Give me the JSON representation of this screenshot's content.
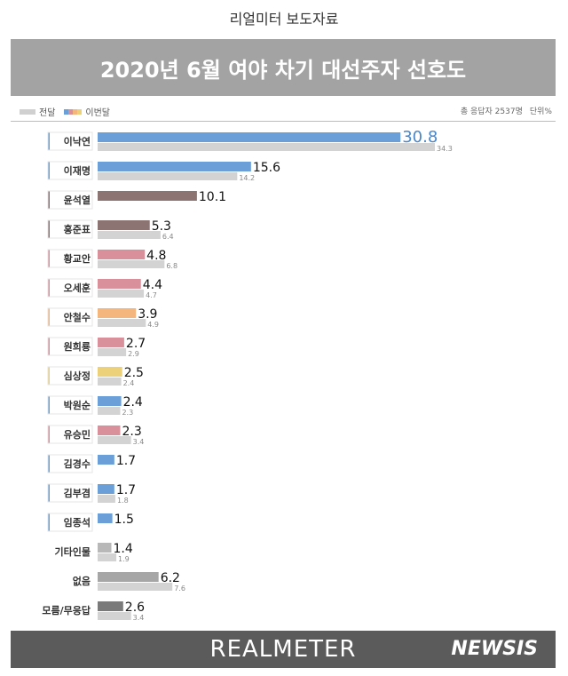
{
  "header": {
    "top_label": "리얼미터 보도자료",
    "title": "2020년 6월 여야 차기 대선주자 선호도"
  },
  "legend": {
    "prev_label": "전달",
    "curr_label": "이번달"
  },
  "info": {
    "respondents": "총 응답자 2537명",
    "unit": "단위%"
  },
  "footer": {
    "brand": "REALMETER",
    "watermark": "NEWSIS"
  },
  "colors": {
    "prev_bar": "#d3d3d3",
    "title_bg": "#a3a3a3",
    "footer_bg": "#5b5b5b"
  },
  "chart_data": {
    "type": "bar",
    "orientation": "horizontal",
    "categories": [
      "이낙연",
      "이재명",
      "윤석열",
      "홍준표",
      "황교안",
      "오세훈",
      "안철수",
      "원희룡",
      "심상정",
      "박원순",
      "유승민",
      "김경수",
      "김부겸",
      "임종석",
      "기타인물",
      "없음",
      "모름/무응답"
    ],
    "series": [
      {
        "name": "이번달",
        "values": [
          30.8,
          15.6,
          10.1,
          5.3,
          4.8,
          4.4,
          3.9,
          2.7,
          2.5,
          2.4,
          2.3,
          1.7,
          1.7,
          1.5,
          1.4,
          6.2,
          2.6
        ],
        "labels": [
          "30.8",
          "15.6",
          "10.1",
          "5.3",
          "4.8",
          "4.4",
          "3.9",
          "2.7",
          "2.5",
          "2.4",
          "2.3",
          "1.7",
          "1.7",
          "1.5",
          "1.4",
          "6.2",
          "2.6"
        ],
        "colors": [
          "#6a9fd8",
          "#6a9fd8",
          "#8c7473",
          "#8c7473",
          "#d9909b",
          "#d9909b",
          "#f5b67e",
          "#d9909b",
          "#edd07a",
          "#6a9fd8",
          "#d9909b",
          "#6a9fd8",
          "#6a9fd8",
          "#6a9fd8",
          "#b8b8b8",
          "#a6a6a6",
          "#7a7a7a"
        ]
      },
      {
        "name": "전달",
        "values": [
          34.3,
          14.2,
          null,
          6.4,
          6.8,
          4.7,
          4.9,
          2.9,
          2.4,
          2.3,
          3.4,
          null,
          1.8,
          null,
          1.9,
          7.6,
          3.4
        ],
        "labels": [
          "34.3",
          "14.2",
          "",
          "6.4",
          "6.8",
          "4.7",
          "4.9",
          "2.9",
          "2.4",
          "2.3",
          "3.4",
          "",
          "1.8",
          "",
          "1.9",
          "7.6",
          "3.4"
        ]
      }
    ],
    "category_marker_colors": [
      "#6a9fd8",
      "#6a9fd8",
      "#8c7473",
      "#8c7473",
      "#d9909b",
      "#d9909b",
      "#f5b67e",
      "#d9909b",
      "#edd07a",
      "#6a9fd8",
      "#d9909b",
      "#6a9fd8",
      "#6a9fd8",
      "#6a9fd8",
      null,
      null,
      null
    ],
    "xlim": [
      0,
      34.3
    ]
  }
}
